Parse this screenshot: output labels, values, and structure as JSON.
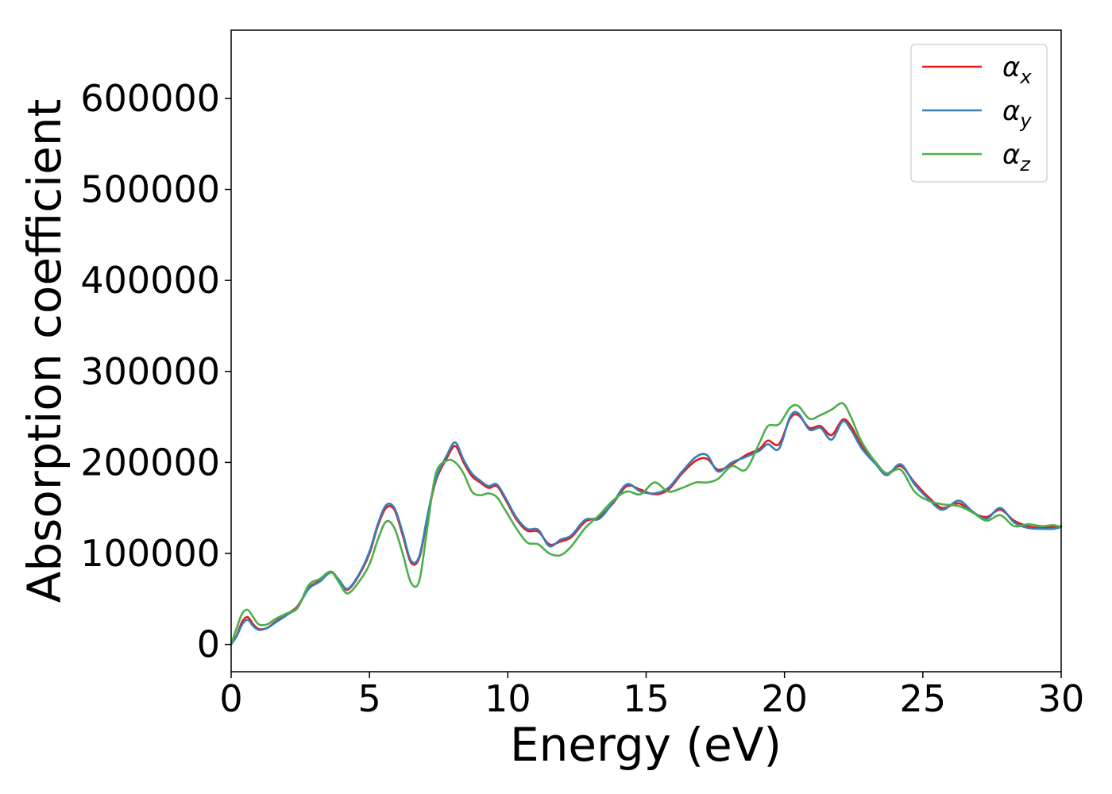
{
  "chart_data": {
    "type": "line",
    "xlabel": "Energy (eV)",
    "ylabel": "Absorption coefficient",
    "xlim": [
      0,
      30
    ],
    "ylim": [
      -30000,
      675000
    ],
    "xticks": [
      0,
      5,
      10,
      15,
      20,
      25,
      30
    ],
    "xtick_labels": [
      "0",
      "5",
      "10",
      "15",
      "20",
      "25",
      "30"
    ],
    "yticks": [
      0,
      100000,
      200000,
      300000,
      400000,
      500000,
      600000
    ],
    "ytick_labels": [
      "0",
      "100000",
      "200000",
      "300000",
      "400000",
      "500000",
      "600000"
    ],
    "grid": false,
    "legend_position": "top-right",
    "series": [
      {
        "name_base": "α",
        "name_sub": "x",
        "color": "#e41a1c",
        "points": [
          [
            0,
            0
          ],
          [
            0.2,
            10000
          ],
          [
            0.4,
            25000
          ],
          [
            0.6,
            30000
          ],
          [
            0.8,
            22000
          ],
          [
            1.0,
            17000
          ],
          [
            1.3,
            18000
          ],
          [
            1.6,
            25000
          ],
          [
            2.0,
            33000
          ],
          [
            2.4,
            42000
          ],
          [
            2.8,
            62000
          ],
          [
            3.2,
            70000
          ],
          [
            3.6,
            80000
          ],
          [
            3.9,
            70000
          ],
          [
            4.2,
            60000
          ],
          [
            4.6,
            75000
          ],
          [
            5.0,
            100000
          ],
          [
            5.3,
            130000
          ],
          [
            5.6,
            150000
          ],
          [
            5.9,
            148000
          ],
          [
            6.2,
            120000
          ],
          [
            6.5,
            90000
          ],
          [
            6.8,
            95000
          ],
          [
            7.1,
            140000
          ],
          [
            7.4,
            180000
          ],
          [
            7.8,
            205000
          ],
          [
            8.1,
            218000
          ],
          [
            8.4,
            200000
          ],
          [
            8.7,
            185000
          ],
          [
            9.0,
            178000
          ],
          [
            9.3,
            172000
          ],
          [
            9.6,
            174000
          ],
          [
            9.9,
            160000
          ],
          [
            10.3,
            138000
          ],
          [
            10.7,
            125000
          ],
          [
            11.1,
            124000
          ],
          [
            11.5,
            110000
          ],
          [
            11.9,
            113000
          ],
          [
            12.3,
            118000
          ],
          [
            12.8,
            135000
          ],
          [
            13.3,
            140000
          ],
          [
            13.8,
            155000
          ],
          [
            14.3,
            174000
          ],
          [
            14.8,
            170000
          ],
          [
            15.3,
            165000
          ],
          [
            15.8,
            170000
          ],
          [
            16.3,
            188000
          ],
          [
            16.8,
            202000
          ],
          [
            17.2,
            204000
          ],
          [
            17.6,
            192000
          ],
          [
            18.1,
            198000
          ],
          [
            18.6,
            208000
          ],
          [
            19.1,
            215000
          ],
          [
            19.4,
            224000
          ],
          [
            19.8,
            220000
          ],
          [
            20.2,
            248000
          ],
          [
            20.5,
            252000
          ],
          [
            20.9,
            238000
          ],
          [
            21.3,
            240000
          ],
          [
            21.7,
            230000
          ],
          [
            22.1,
            247000
          ],
          [
            22.4,
            240000
          ],
          [
            22.8,
            218000
          ],
          [
            23.3,
            200000
          ],
          [
            23.7,
            188000
          ],
          [
            24.2,
            196000
          ],
          [
            24.7,
            178000
          ],
          [
            25.2,
            162000
          ],
          [
            25.7,
            150000
          ],
          [
            26.3,
            155000
          ],
          [
            26.8,
            145000
          ],
          [
            27.3,
            140000
          ],
          [
            27.8,
            148000
          ],
          [
            28.3,
            136000
          ],
          [
            28.8,
            130000
          ],
          [
            29.3,
            128000
          ],
          [
            29.7,
            129000
          ],
          [
            30.0,
            130000
          ]
        ]
      },
      {
        "name_base": "α",
        "name_sub": "y",
        "color": "#377eb8",
        "points": [
          [
            0,
            0
          ],
          [
            0.2,
            9000
          ],
          [
            0.4,
            22000
          ],
          [
            0.6,
            27000
          ],
          [
            0.8,
            20000
          ],
          [
            1.0,
            16000
          ],
          [
            1.3,
            18000
          ],
          [
            1.6,
            24000
          ],
          [
            2.0,
            32000
          ],
          [
            2.4,
            41000
          ],
          [
            2.8,
            61000
          ],
          [
            3.2,
            69000
          ],
          [
            3.6,
            79000
          ],
          [
            3.9,
            71000
          ],
          [
            4.2,
            61000
          ],
          [
            4.6,
            76000
          ],
          [
            5.0,
            102000
          ],
          [
            5.3,
            132000
          ],
          [
            5.6,
            153000
          ],
          [
            5.9,
            150000
          ],
          [
            6.2,
            123000
          ],
          [
            6.5,
            92000
          ],
          [
            6.8,
            97000
          ],
          [
            7.1,
            142000
          ],
          [
            7.4,
            182000
          ],
          [
            7.8,
            208000
          ],
          [
            8.1,
            222000
          ],
          [
            8.4,
            203000
          ],
          [
            8.7,
            188000
          ],
          [
            9.0,
            180000
          ],
          [
            9.3,
            174000
          ],
          [
            9.6,
            176000
          ],
          [
            9.9,
            162000
          ],
          [
            10.3,
            140000
          ],
          [
            10.7,
            127000
          ],
          [
            11.1,
            126000
          ],
          [
            11.5,
            108000
          ],
          [
            11.9,
            115000
          ],
          [
            12.3,
            120000
          ],
          [
            12.8,
            137000
          ],
          [
            13.3,
            138000
          ],
          [
            13.8,
            156000
          ],
          [
            14.3,
            176000
          ],
          [
            14.8,
            168000
          ],
          [
            15.3,
            166000
          ],
          [
            15.8,
            172000
          ],
          [
            16.3,
            190000
          ],
          [
            16.8,
            206000
          ],
          [
            17.2,
            208000
          ],
          [
            17.6,
            190000
          ],
          [
            18.1,
            200000
          ],
          [
            18.6,
            206000
          ],
          [
            19.1,
            213000
          ],
          [
            19.4,
            220000
          ],
          [
            19.8,
            215000
          ],
          [
            20.2,
            250000
          ],
          [
            20.5,
            254000
          ],
          [
            20.9,
            236000
          ],
          [
            21.3,
            238000
          ],
          [
            21.7,
            225000
          ],
          [
            22.1,
            245000
          ],
          [
            22.4,
            236000
          ],
          [
            22.8,
            215000
          ],
          [
            23.3,
            198000
          ],
          [
            23.7,
            186000
          ],
          [
            24.2,
            198000
          ],
          [
            24.7,
            176000
          ],
          [
            25.2,
            160000
          ],
          [
            25.7,
            148000
          ],
          [
            26.3,
            158000
          ],
          [
            26.8,
            146000
          ],
          [
            27.3,
            138000
          ],
          [
            27.8,
            150000
          ],
          [
            28.3,
            134000
          ],
          [
            28.8,
            128000
          ],
          [
            29.3,
            127000
          ],
          [
            29.7,
            127000
          ],
          [
            30.0,
            129000
          ]
        ]
      },
      {
        "name_base": "α",
        "name_sub": "z",
        "color": "#4daf4a",
        "points": [
          [
            0,
            0
          ],
          [
            0.2,
            18000
          ],
          [
            0.4,
            34000
          ],
          [
            0.6,
            38000
          ],
          [
            0.8,
            30000
          ],
          [
            1.0,
            22000
          ],
          [
            1.3,
            22000
          ],
          [
            1.6,
            28000
          ],
          [
            2.0,
            34000
          ],
          [
            2.4,
            40000
          ],
          [
            2.8,
            65000
          ],
          [
            3.2,
            72000
          ],
          [
            3.6,
            80000
          ],
          [
            3.9,
            68000
          ],
          [
            4.2,
            56000
          ],
          [
            4.6,
            68000
          ],
          [
            5.0,
            88000
          ],
          [
            5.3,
            115000
          ],
          [
            5.6,
            135000
          ],
          [
            5.9,
            128000
          ],
          [
            6.2,
            100000
          ],
          [
            6.5,
            68000
          ],
          [
            6.8,
            70000
          ],
          [
            7.1,
            130000
          ],
          [
            7.4,
            188000
          ],
          [
            7.8,
            202000
          ],
          [
            8.1,
            200000
          ],
          [
            8.4,
            188000
          ],
          [
            8.7,
            168000
          ],
          [
            9.0,
            164000
          ],
          [
            9.3,
            166000
          ],
          [
            9.6,
            162000
          ],
          [
            9.9,
            148000
          ],
          [
            10.3,
            128000
          ],
          [
            10.7,
            112000
          ],
          [
            11.1,
            110000
          ],
          [
            11.5,
            100000
          ],
          [
            11.9,
            98000
          ],
          [
            12.3,
            108000
          ],
          [
            12.8,
            128000
          ],
          [
            13.3,
            142000
          ],
          [
            13.8,
            158000
          ],
          [
            14.3,
            168000
          ],
          [
            14.8,
            165000
          ],
          [
            15.3,
            178000
          ],
          [
            15.8,
            168000
          ],
          [
            16.3,
            172000
          ],
          [
            16.8,
            178000
          ],
          [
            17.2,
            178000
          ],
          [
            17.6,
            182000
          ],
          [
            18.1,
            196000
          ],
          [
            18.6,
            192000
          ],
          [
            19.1,
            222000
          ],
          [
            19.4,
            240000
          ],
          [
            19.8,
            242000
          ],
          [
            20.2,
            260000
          ],
          [
            20.5,
            262000
          ],
          [
            20.9,
            248000
          ],
          [
            21.3,
            252000
          ],
          [
            21.7,
            258000
          ],
          [
            22.1,
            265000
          ],
          [
            22.4,
            250000
          ],
          [
            22.8,
            222000
          ],
          [
            23.3,
            200000
          ],
          [
            23.7,
            188000
          ],
          [
            24.2,
            192000
          ],
          [
            24.7,
            168000
          ],
          [
            25.2,
            158000
          ],
          [
            25.7,
            154000
          ],
          [
            26.3,
            152000
          ],
          [
            26.8,
            145000
          ],
          [
            27.3,
            136000
          ],
          [
            27.8,
            142000
          ],
          [
            28.3,
            130000
          ],
          [
            28.8,
            132000
          ],
          [
            29.3,
            130000
          ],
          [
            29.7,
            131000
          ],
          [
            30.0,
            129000
          ]
        ]
      }
    ]
  }
}
